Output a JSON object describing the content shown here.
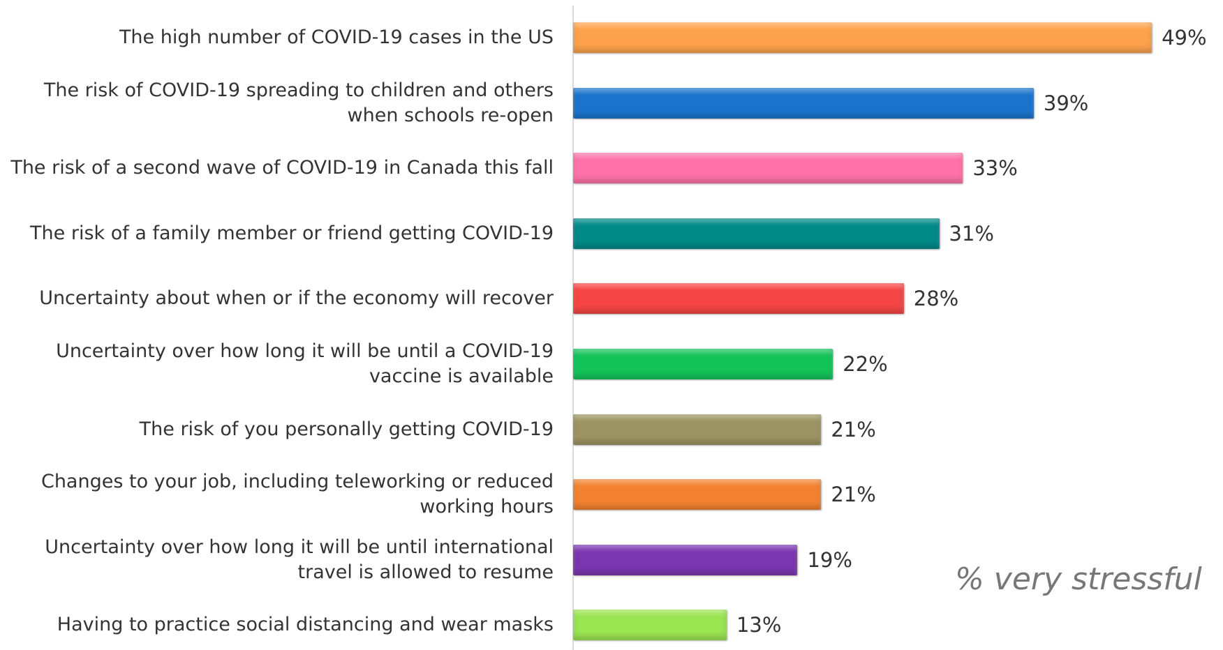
{
  "chart_data": {
    "type": "bar",
    "orientation": "horizontal",
    "categories": [
      "The high number of COVID-19 cases in the US",
      "The risk of COVID-19 spreading to children and others when schools re-open",
      "The risk of a second wave of COVID-19 in Canada this fall",
      "The risk of a family member or friend getting COVID-19",
      "Uncertainty about when or if the economy will recover",
      "Uncertainty over how long it will be until a COVID-19 vaccine is available",
      "The risk of you personally getting COVID-19",
      "Changes to your job, including teleworking or reduced working hours",
      "Uncertainty over how long it will be until international travel is allowed to resume",
      "Having to practice social distancing and wear masks"
    ],
    "values": [
      49,
      39,
      33,
      31,
      28,
      22,
      21,
      21,
      19,
      13
    ],
    "value_labels": [
      "49%",
      "39%",
      "33%",
      "31%",
      "28%",
      "22%",
      "21%",
      "21%",
      "19%",
      "13%"
    ],
    "colors": [
      "#fda24c",
      "#1b74cc",
      "#ff72a8",
      "#008a88",
      "#f64545",
      "#13c35a",
      "#9c9462",
      "#f2822f",
      "#7a36b0",
      "#9ae552"
    ],
    "xlim": [
      0,
      50
    ],
    "annotation": "% very stressful"
  }
}
